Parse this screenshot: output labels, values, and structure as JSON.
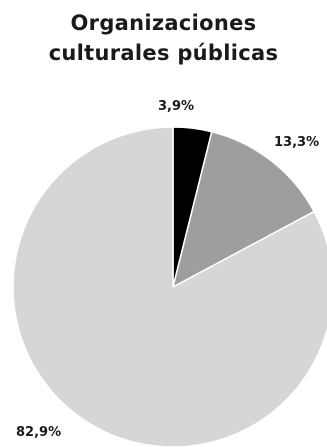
{
  "chart_data": {
    "type": "pie",
    "title_lines": [
      "Organizaciones",
      "culturales públicas"
    ],
    "start_angle_deg": 0,
    "direction": "clockwise",
    "slices": [
      {
        "value": 3.9,
        "label": "3,9%",
        "color": "#000000"
      },
      {
        "value": 13.3,
        "label": "13,3%",
        "color": "#9e9e9e"
      },
      {
        "value": 82.9,
        "label": "82,9%",
        "color": "#d6d6d6"
      }
    ],
    "legend": "none"
  }
}
